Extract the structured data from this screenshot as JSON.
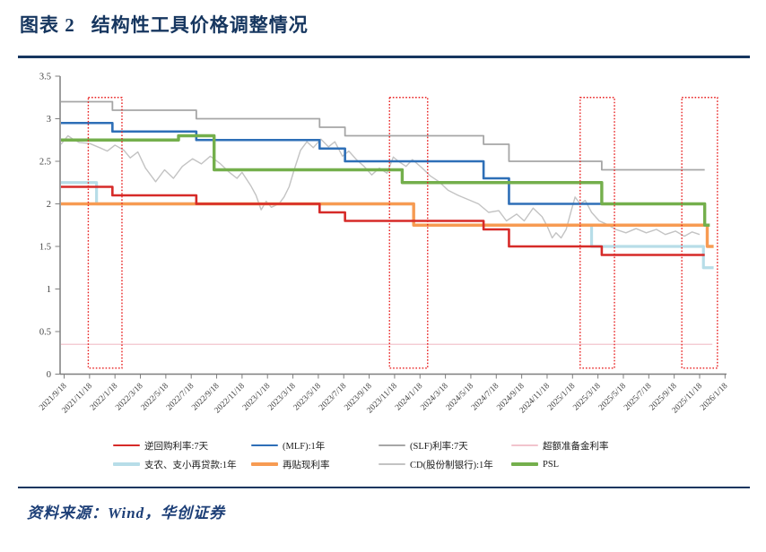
{
  "page": {
    "title_prefix": "图表 2",
    "title": "结构性工具价格调整情况",
    "source": "资料来源：Wind，华创证券",
    "accent_color": "#16365f"
  },
  "chart_data": {
    "type": "line",
    "title": "结构性工具价格调整情况",
    "x_unit": "months_since_2021/9/18",
    "x_axis": {
      "start_date": "2021/9/18",
      "end_date": "2026/1/18",
      "tick_interval_months": 2,
      "tick_labels": [
        "2021/9/18",
        "2021/11/18",
        "2022/1/18",
        "2022/3/18",
        "2022/5/18",
        "2022/7/18",
        "2022/9/18",
        "2022/11/18",
        "2023/1/18",
        "2023/3/18",
        "2023/5/18",
        "2023/7/18",
        "2023/9/18",
        "2023/11/18",
        "2024/1/18",
        "2024/3/18",
        "2024/5/18",
        "2024/7/18",
        "2024/9/18",
        "2024/11/18",
        "2025/1/18",
        "2025/3/18",
        "2025/5/18",
        "2025/7/18",
        "2025/9/18",
        "2025/11/18",
        "2026/1/18"
      ]
    },
    "y_axis": {
      "min": 0,
      "max": 3.5,
      "tick_values": [
        3.5,
        3,
        2.5,
        2,
        1.5,
        1,
        0.5,
        0
      ],
      "tick_labels": [
        "3.5",
        "3",
        "2.5",
        "2",
        "1.5",
        "1",
        "0.5",
        "0"
      ]
    },
    "grid": false,
    "legend_position": "bottom",
    "draw_order": [
      3,
      6,
      2,
      4,
      1,
      5,
      0,
      7
    ],
    "series": [
      {
        "id": "omo7d",
        "name": "逆回购利率:7天",
        "color": "#d62a28",
        "type": "step",
        "line_width": 2.6,
        "points": [
          [
            0,
            2.2
          ],
          [
            3.8,
            2.1
          ],
          [
            10.4,
            2.0
          ],
          [
            20.1,
            1.9
          ],
          [
            22.1,
            1.8
          ],
          [
            33.0,
            1.7
          ],
          [
            35.0,
            1.5
          ],
          [
            42.3,
            1.4
          ],
          [
            50.4,
            1.4
          ]
        ]
      },
      {
        "id": "mlf1y",
        "name": "(MLF):1年",
        "color": "#2e6fb7",
        "type": "step",
        "line_width": 2.6,
        "points": [
          [
            0,
            2.95
          ],
          [
            3.8,
            2.85
          ],
          [
            10.4,
            2.75
          ],
          [
            20.1,
            2.65
          ],
          [
            22.1,
            2.5
          ],
          [
            33.0,
            2.3
          ],
          [
            35.0,
            2.0
          ],
          [
            42.3,
            2.0
          ]
        ]
      },
      {
        "id": "slf7d",
        "name": "(SLF)利率:7天",
        "color": "#a6a6a6",
        "type": "step",
        "line_width": 1.8,
        "points": [
          [
            0,
            3.2
          ],
          [
            3.8,
            3.1
          ],
          [
            10.4,
            3.0
          ],
          [
            20.1,
            2.9
          ],
          [
            22.1,
            2.8
          ],
          [
            33.0,
            2.7
          ],
          [
            35.0,
            2.5
          ],
          [
            42.3,
            2.4
          ],
          [
            50.4,
            2.4
          ]
        ]
      },
      {
        "id": "excess-reserve",
        "name": "超额准备金利率",
        "color": "#f2c4cd",
        "type": "step",
        "line_width": 1.2,
        "points": [
          [
            0,
            0.35
          ],
          [
            51.0,
            0.35
          ]
        ]
      },
      {
        "id": "relending",
        "name": "支农、支小再贷款:1年",
        "color": "#b7dde8",
        "type": "step",
        "line_width": 3.2,
        "points": [
          [
            0,
            2.25
          ],
          [
            2.55,
            2.0
          ],
          [
            27.5,
            1.75
          ],
          [
            41.5,
            1.5
          ],
          [
            50.3,
            1.25
          ],
          [
            51.1,
            1.25
          ]
        ]
      },
      {
        "id": "rediscount",
        "name": "再贴现利率",
        "color": "#f79b52",
        "type": "step",
        "line_width": 3.4,
        "points": [
          [
            0,
            2.0
          ],
          [
            27.5,
            1.75
          ],
          [
            50.6,
            1.5
          ],
          [
            51.1,
            1.5
          ]
        ]
      },
      {
        "id": "ncd1y",
        "name": "CD(股份制银行):1年",
        "color": "#c3c3c3",
        "type": "line",
        "line_width": 1.4,
        "points": [
          [
            0,
            2.7
          ],
          [
            0.3,
            2.8
          ],
          [
            0.7,
            2.76
          ],
          [
            1.2,
            2.72
          ],
          [
            2.0,
            2.71
          ],
          [
            2.8,
            2.66
          ],
          [
            3.4,
            2.62
          ],
          [
            4.0,
            2.69
          ],
          [
            4.7,
            2.63
          ],
          [
            5.2,
            2.54
          ],
          [
            5.8,
            2.61
          ],
          [
            6.4,
            2.42
          ],
          [
            7.2,
            2.26
          ],
          [
            7.9,
            2.4
          ],
          [
            8.6,
            2.3
          ],
          [
            9.3,
            2.44
          ],
          [
            10.1,
            2.53
          ],
          [
            10.8,
            2.47
          ],
          [
            11.5,
            2.56
          ],
          [
            12.3,
            2.47
          ],
          [
            13.0,
            2.37
          ],
          [
            13.6,
            2.3
          ],
          [
            14.0,
            2.37
          ],
          [
            14.7,
            2.21
          ],
          [
            15.1,
            2.1
          ],
          [
            15.5,
            1.93
          ],
          [
            15.9,
            2.03
          ],
          [
            16.3,
            1.96
          ],
          [
            16.9,
            2.0
          ],
          [
            17.3,
            2.08
          ],
          [
            17.7,
            2.2
          ],
          [
            18.1,
            2.4
          ],
          [
            18.6,
            2.63
          ],
          [
            19.1,
            2.73
          ],
          [
            19.6,
            2.66
          ],
          [
            20.2,
            2.76
          ],
          [
            20.8,
            2.67
          ],
          [
            21.3,
            2.73
          ],
          [
            21.9,
            2.56
          ],
          [
            22.4,
            2.62
          ],
          [
            23.0,
            2.52
          ],
          [
            23.6,
            2.44
          ],
          [
            24.2,
            2.34
          ],
          [
            24.8,
            2.42
          ],
          [
            25.4,
            2.36
          ],
          [
            25.9,
            2.55
          ],
          [
            26.3,
            2.5
          ],
          [
            26.9,
            2.44
          ],
          [
            27.4,
            2.52
          ],
          [
            28.1,
            2.43
          ],
          [
            28.8,
            2.33
          ],
          [
            29.5,
            2.26
          ],
          [
            30.2,
            2.16
          ],
          [
            31.0,
            2.1
          ],
          [
            31.8,
            2.05
          ],
          [
            32.6,
            2.0
          ],
          [
            33.4,
            1.9
          ],
          [
            34.2,
            1.92
          ],
          [
            34.8,
            1.8
          ],
          [
            35.6,
            1.88
          ],
          [
            36.2,
            1.8
          ],
          [
            36.9,
            1.95
          ],
          [
            37.6,
            1.85
          ],
          [
            38.0,
            1.74
          ],
          [
            38.4,
            1.6
          ],
          [
            38.7,
            1.66
          ],
          [
            39.1,
            1.6
          ],
          [
            39.5,
            1.7
          ],
          [
            39.9,
            1.92
          ],
          [
            40.2,
            2.08
          ],
          [
            40.6,
            2.0
          ],
          [
            41.0,
            2.04
          ],
          [
            41.5,
            1.9
          ],
          [
            42.1,
            1.8
          ],
          [
            42.7,
            1.76
          ],
          [
            43.4,
            1.7
          ],
          [
            44.2,
            1.66
          ],
          [
            45.0,
            1.71
          ],
          [
            45.8,
            1.66
          ],
          [
            46.6,
            1.7
          ],
          [
            47.3,
            1.64
          ],
          [
            48.1,
            1.68
          ],
          [
            48.8,
            1.62
          ],
          [
            49.4,
            1.67
          ],
          [
            50.0,
            1.64
          ]
        ]
      },
      {
        "id": "psl",
        "name": "PSL",
        "color": "#74af4c",
        "type": "step",
        "line_width": 3.4,
        "points": [
          [
            0,
            2.75
          ],
          [
            9.0,
            2.8
          ],
          [
            11.8,
            2.4
          ],
          [
            26.6,
            2.25
          ],
          [
            42.3,
            2.0
          ],
          [
            50.4,
            1.75
          ],
          [
            50.8,
            1.75
          ]
        ]
      }
    ],
    "highlight_boxes": {
      "color": "#e82020",
      "style": "dotted",
      "v_min": 0.07,
      "v_max": 3.25,
      "ranges": [
        [
          1.9,
          4.55
        ],
        [
          25.6,
          28.6
        ],
        [
          40.6,
          43.3
        ],
        [
          48.6,
          51.4
        ]
      ]
    }
  }
}
